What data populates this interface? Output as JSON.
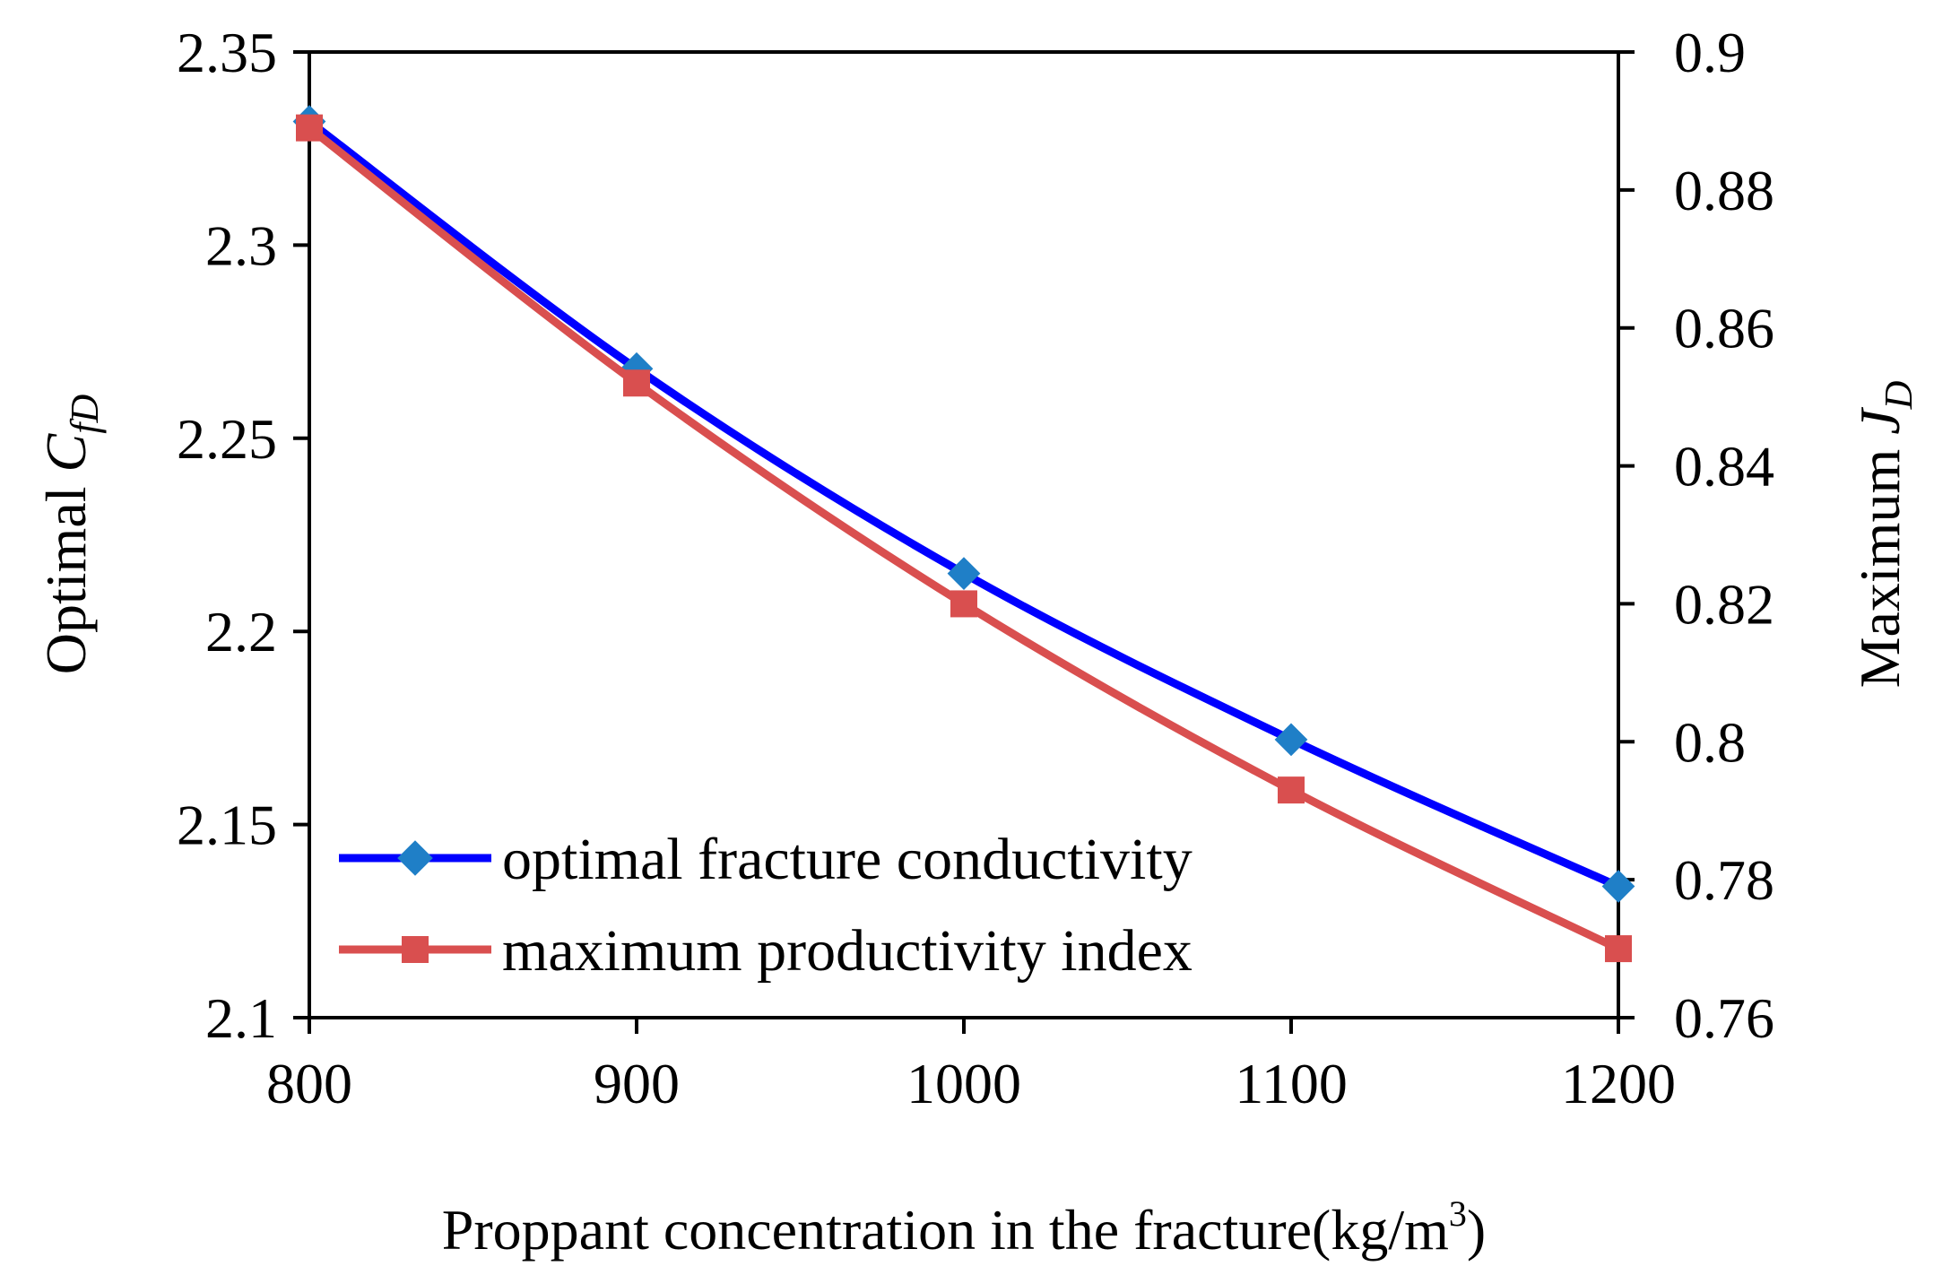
{
  "chart_data": {
    "type": "line",
    "title": "",
    "x": [
      800,
      900,
      1000,
      1100,
      1200
    ],
    "xlim": [
      800,
      1200
    ],
    "xticks": [
      "800",
      "900",
      "1000",
      "1100",
      "1200"
    ],
    "xlabel": {
      "main": "Proppant concentration in the fracture(kg/m",
      "sup": "3",
      "close": ")"
    },
    "ylabel_left": {
      "main": "Optimal ",
      "var": "C",
      "sub": "fD"
    },
    "ylabel_right": {
      "main": "Maximum ",
      "var": "J",
      "sub": "D"
    },
    "ylim_left": [
      2.1,
      2.35
    ],
    "ylim_right": [
      0.76,
      0.9
    ],
    "yticks_left": [
      "2.1",
      "2.15",
      "2.2",
      "2.25",
      "2.3",
      "2.35"
    ],
    "yticks_right": [
      "0.76",
      "0.78",
      "0.8",
      "0.82",
      "0.84",
      "0.86",
      "0.88",
      "0.9"
    ],
    "grid": false,
    "legend_position": "bottom-left",
    "series": [
      {
        "name": "optimal fracture conductivity",
        "axis": "left",
        "values": [
          2.332,
          2.268,
          2.215,
          2.172,
          2.134
        ],
        "color": "#0000ff",
        "marker": "diamond",
        "marker_color": "#1f7fc7"
      },
      {
        "name": "maximum productivity index",
        "axis": "right",
        "values": [
          0.889,
          0.852,
          0.82,
          0.793,
          0.77
        ],
        "color": "#d94f4f",
        "marker": "square",
        "marker_color": "#d94f4f"
      }
    ]
  }
}
